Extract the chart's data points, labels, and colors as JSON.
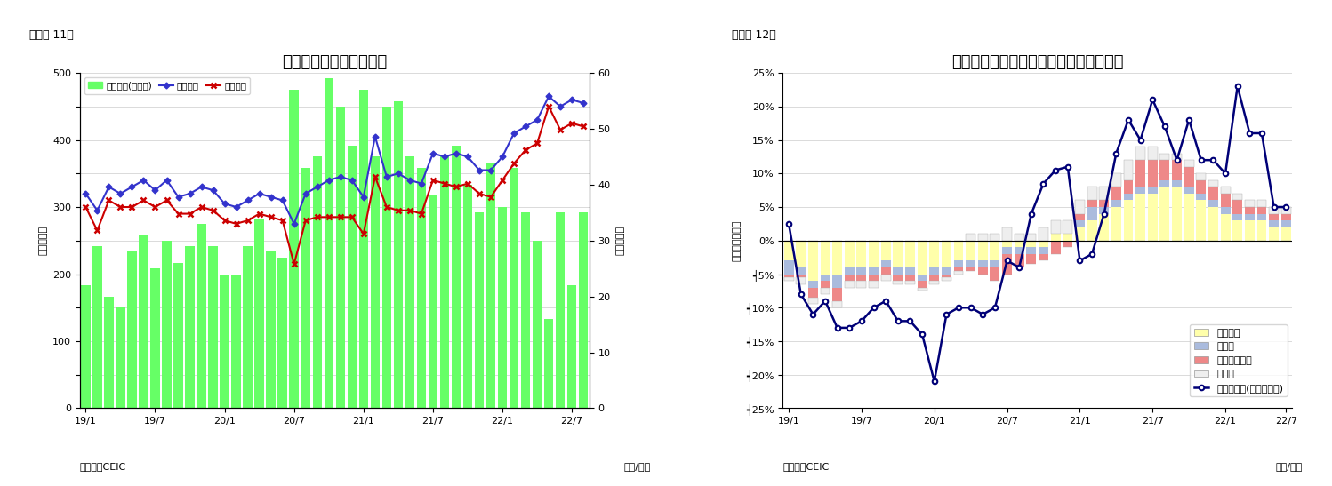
{
  "fig11": {
    "title": "シンガポール　貿易収支",
    "subtitle": "（図表 11）",
    "ylabel_left": "（億ドル）",
    "ylabel_right": "（億ドル）",
    "source": "（資料）CEIC",
    "xlabel": "（年/月）",
    "legend": [
      "貿易収支(右目盛)",
      "総輸出額",
      "総輸入額"
    ],
    "tick_labels": [
      "19/1",
      "19/7",
      "20/1",
      "20/7",
      "21/1",
      "21/7",
      "22/1",
      "22/7"
    ],
    "tick_positions": [
      0,
      6,
      12,
      18,
      24,
      30,
      36,
      42
    ],
    "bar_color": "#66FF66",
    "line1_color": "#3333CC",
    "line2_color": "#CC0000",
    "ylim_left": [
      0,
      500
    ],
    "ylim_right": [
      0,
      60
    ],
    "trade_balance": [
      22,
      29,
      20,
      18,
      28,
      31,
      25,
      30,
      26,
      29,
      33,
      29,
      24,
      24,
      29,
      34,
      28,
      27,
      57,
      43,
      45,
      59,
      54,
      47,
      57,
      45,
      54,
      55,
      45,
      43,
      38,
      45,
      47,
      40,
      35,
      44,
      36,
      43,
      35,
      30,
      16,
      35,
      22,
      35
    ],
    "exports": [
      320,
      295,
      330,
      320,
      330,
      340,
      325,
      340,
      315,
      320,
      330,
      325,
      305,
      300,
      310,
      320,
      315,
      310,
      275,
      320,
      330,
      340,
      345,
      340,
      315,
      405,
      345,
      350,
      340,
      335,
      380,
      375,
      380,
      375,
      355,
      355,
      375,
      410,
      420,
      430,
      465,
      450,
      460,
      455
    ],
    "imports": [
      300,
      265,
      310,
      300,
      300,
      310,
      300,
      310,
      290,
      290,
      300,
      295,
      280,
      275,
      280,
      290,
      285,
      280,
      215,
      280,
      285,
      285,
      285,
      285,
      260,
      345,
      300,
      295,
      295,
      290,
      340,
      335,
      330,
      335,
      320,
      315,
      340,
      365,
      385,
      395,
      450,
      415,
      425,
      420
    ],
    "n_months": 44
  },
  "fig12": {
    "title": "シンガポール　輸出の伸び率（品目別）",
    "subtitle": "（図表 12）",
    "ylabel_left": "（前年同期比）",
    "source": "（資料）CEIC",
    "xlabel": "（年/月）",
    "tick_labels": [
      "19/1",
      "19/7",
      "20/1",
      "20/7",
      "21/1",
      "21/7",
      "22/1",
      "22/7"
    ],
    "tick_positions": [
      0,
      6,
      12,
      18,
      24,
      30,
      36,
      41
    ],
    "legend": [
      "電子製品",
      "医薬品",
      "石油化学製品",
      "その他",
      "非石油輸出(再輸出除く)"
    ],
    "colors": {
      "electronics": "#FFFFAA",
      "pharma": "#AABBDD",
      "petrochem": "#EE8888",
      "others": "#EEEEEE",
      "line": "#000077"
    },
    "ylim": [
      -0.25,
      0.25
    ],
    "electronics": [
      -0.03,
      -0.04,
      -0.06,
      -0.05,
      -0.05,
      -0.04,
      -0.04,
      -0.04,
      -0.03,
      -0.04,
      -0.04,
      -0.05,
      -0.04,
      -0.04,
      -0.03,
      -0.03,
      -0.03,
      -0.03,
      -0.01,
      -0.01,
      -0.01,
      -0.01,
      0.01,
      0.01,
      0.02,
      0.03,
      0.04,
      0.05,
      0.06,
      0.07,
      0.07,
      0.08,
      0.08,
      0.07,
      0.06,
      0.05,
      0.04,
      0.03,
      0.03,
      0.03,
      0.02,
      0.02
    ],
    "pharma": [
      -0.02,
      -0.01,
      -0.01,
      -0.01,
      -0.02,
      -0.01,
      -0.01,
      -0.01,
      -0.01,
      -0.01,
      -0.01,
      -0.01,
      -0.01,
      -0.01,
      -0.01,
      -0.01,
      -0.01,
      -0.01,
      -0.01,
      -0.01,
      -0.01,
      -0.01,
      0.0,
      0.0,
      0.01,
      0.02,
      0.01,
      0.01,
      0.01,
      0.01,
      0.01,
      0.01,
      0.01,
      0.01,
      0.01,
      0.01,
      0.01,
      0.01,
      0.01,
      0.01,
      0.01,
      0.01
    ],
    "petrochem": [
      -0.005,
      -0.005,
      -0.015,
      -0.01,
      -0.02,
      -0.01,
      -0.01,
      -0.01,
      -0.01,
      -0.01,
      -0.01,
      -0.01,
      -0.01,
      -0.005,
      -0.005,
      -0.005,
      -0.01,
      -0.02,
      -0.03,
      -0.02,
      -0.015,
      -0.01,
      -0.02,
      -0.01,
      0.01,
      0.01,
      0.01,
      0.02,
      0.02,
      0.04,
      0.04,
      0.03,
      0.03,
      0.03,
      0.02,
      0.02,
      0.02,
      0.02,
      0.01,
      0.01,
      0.01,
      0.01
    ],
    "others": [
      -0.005,
      -0.01,
      -0.01,
      -0.01,
      -0.01,
      -0.01,
      -0.01,
      -0.01,
      -0.01,
      -0.005,
      -0.005,
      -0.005,
      -0.005,
      -0.005,
      -0.005,
      0.01,
      0.01,
      0.01,
      0.02,
      0.01,
      0.01,
      0.02,
      0.02,
      0.02,
      0.02,
      0.02,
      0.02,
      0.02,
      0.03,
      0.02,
      0.02,
      0.01,
      0.01,
      0.01,
      0.01,
      0.01,
      0.01,
      0.01,
      0.01,
      0.01,
      0.01,
      0.01
    ],
    "line_data": [
      0.025,
      -0.08,
      -0.11,
      -0.09,
      -0.13,
      -0.13,
      -0.12,
      -0.1,
      -0.09,
      -0.12,
      -0.12,
      -0.14,
      -0.21,
      -0.11,
      -0.1,
      -0.1,
      -0.11,
      -0.1,
      -0.03,
      -0.04,
      0.04,
      0.085,
      0.105,
      0.11,
      -0.03,
      -0.02,
      0.04,
      0.13,
      0.18,
      0.15,
      0.21,
      0.17,
      0.12,
      0.18,
      0.12,
      0.12,
      0.1,
      0.23,
      0.16,
      0.16,
      0.05,
      0.05
    ],
    "n_months": 42
  }
}
